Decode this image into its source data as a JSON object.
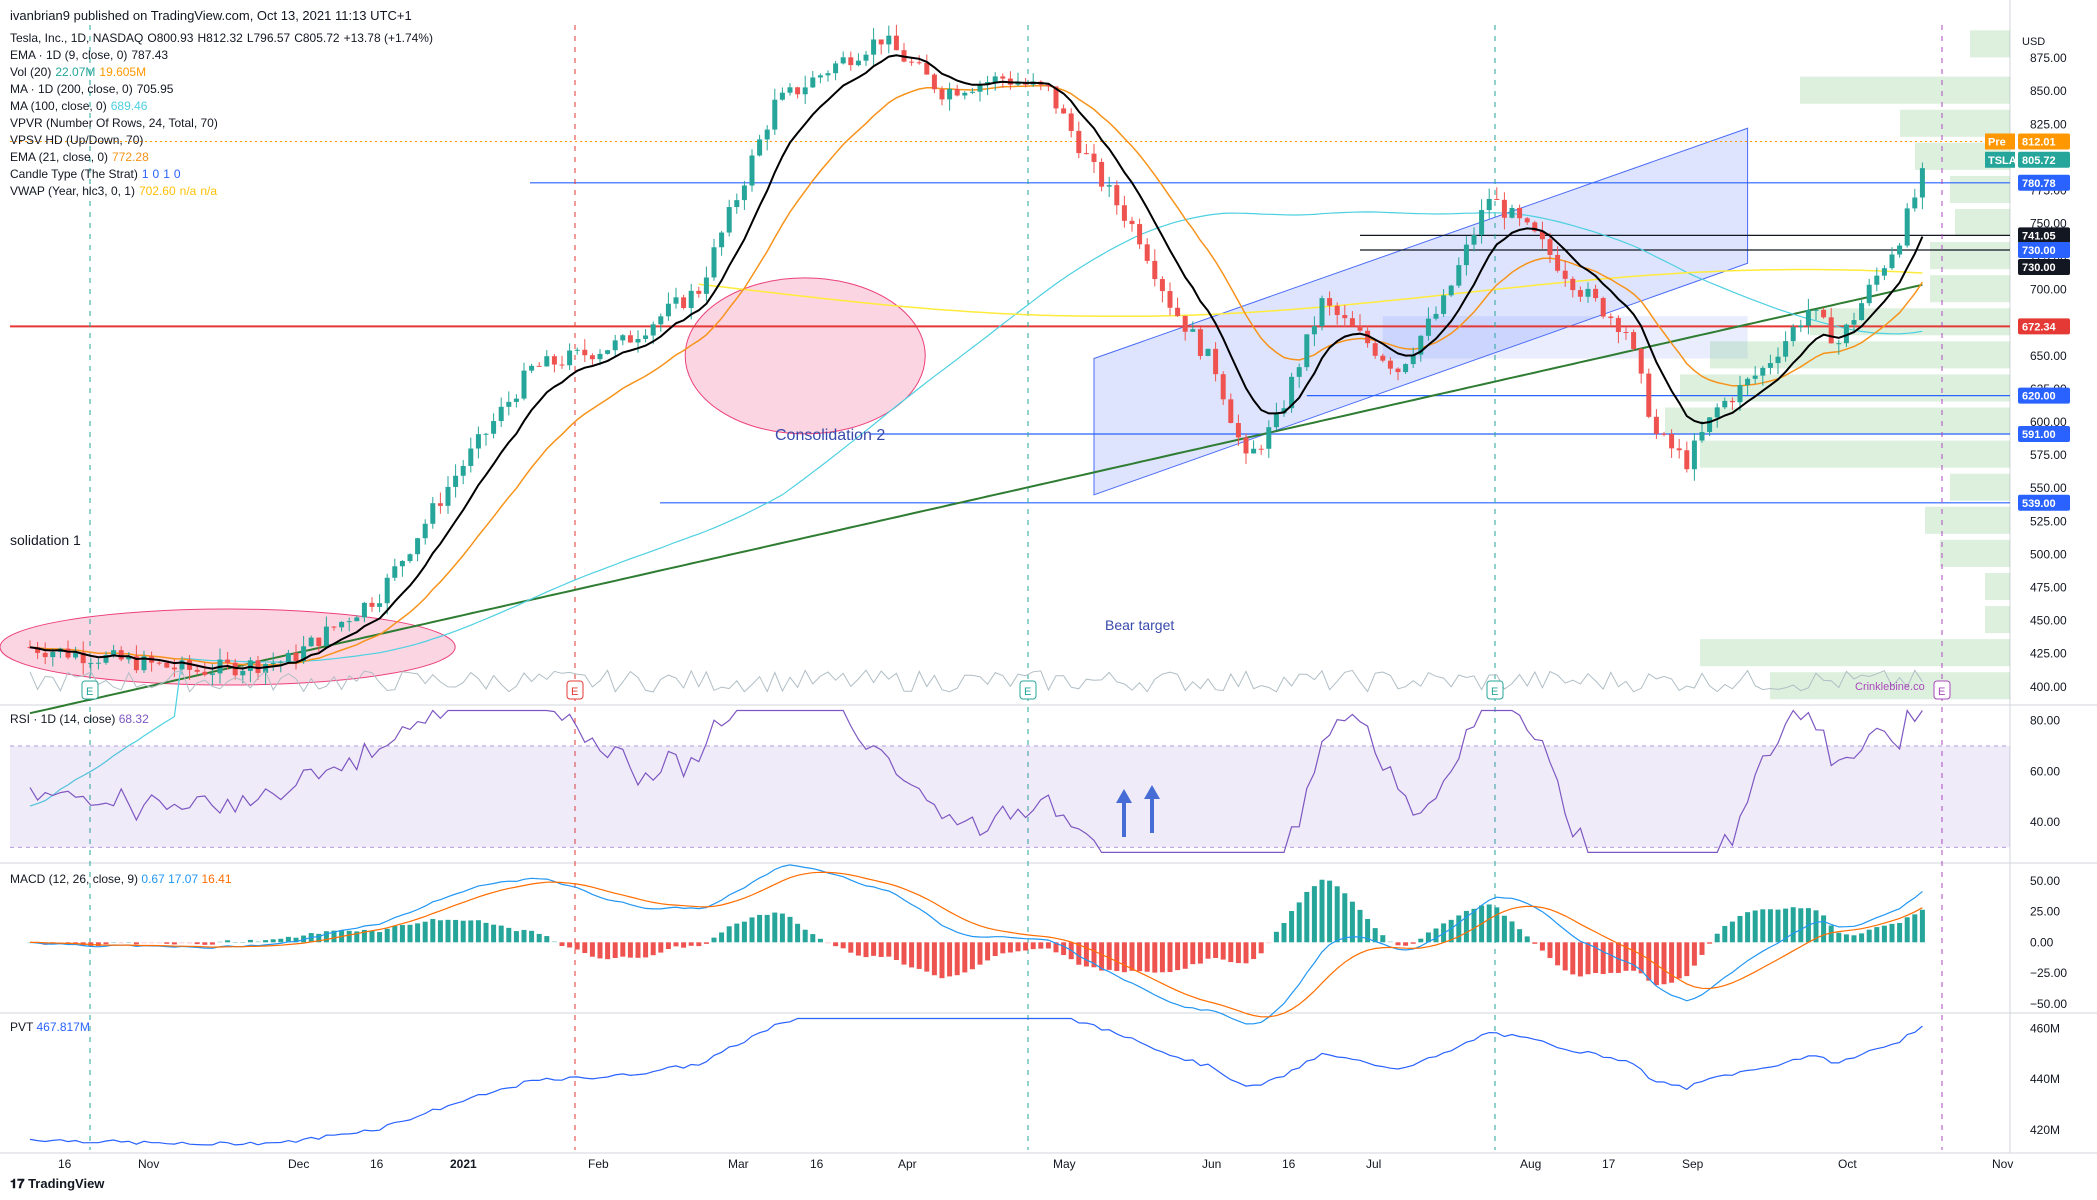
{
  "header": {
    "publisher": "ivanbrian9 published on TradingView.com, Oct 13, 2021 11:13 UTC+1"
  },
  "legend": [
    {
      "label": "Tesla, Inc., 1D, NASDAQ",
      "values": [
        "O800.93",
        "H812.32",
        "L796.57",
        "C805.72",
        "+13.78 (+1.74%)"
      ]
    },
    {
      "label": "EMA · 1D (9, close, 0)",
      "values": [
        "787.43"
      ]
    },
    {
      "label": "Vol (20)",
      "values": [
        "22.07M",
        "19.605M"
      ]
    },
    {
      "label": "MA · 1D (200, close, 0)",
      "values": [
        "705.95"
      ]
    },
    {
      "label": "MA (100, close, 0)",
      "values": [
        "689.46"
      ]
    },
    {
      "label": "VPVR (Number Of Rows, 24, Total, 70)",
      "values": []
    },
    {
      "label": "VPSV HD (Up/Down, 70)",
      "values": []
    },
    {
      "label": "EMA (21, close, 0)",
      "values": [
        "772.28"
      ]
    },
    {
      "label": "Candle Type (The Strat)",
      "values": [
        "1",
        "0",
        "1",
        "0"
      ]
    },
    {
      "label": "VWAP (Year, hlc3, 0, 1)",
      "values": [
        "702.60",
        "n/a",
        "n/a"
      ]
    }
  ],
  "colors": {
    "up": "#26a69a",
    "down": "#ef5350",
    "ema9": "#000000",
    "ema21": "#f7931a",
    "ma100": "#4dd0e1",
    "ma200": "#2e7d32",
    "vwap": "#ffeb3b",
    "channel": "#4a6cf7",
    "rsi": "#7e57c2",
    "macd": "#2196f3",
    "signal": "#ff6d00",
    "pvt": "#2962ff",
    "support": "#2962ff",
    "resistance": "#e53935"
  },
  "chart_data": [
    {
      "type": "candlestick",
      "symbol": "TSLA",
      "x_axis": [
        "16",
        "Nov",
        "Dec",
        "16",
        "2021",
        "Feb",
        "Mar",
        "16",
        "Apr",
        "May",
        "Jun",
        "16",
        "Jul",
        "Aug",
        "17",
        "Sep",
        "Oct",
        "Nov"
      ],
      "y_axis": [
        "875.00",
        "850.00",
        "825.00",
        "800.00",
        "775.00",
        "750.00",
        "725.00",
        "700.00",
        "675.00",
        "650.00",
        "625.00",
        "600.00",
        "575.00",
        "550.00",
        "525.00",
        "500.00",
        "475.00",
        "450.00",
        "425.00",
        "400.00"
      ],
      "ylim": [
        390,
        900
      ],
      "price_tags": [
        {
          "label": "USD",
          "value": "",
          "color": "#ffffff",
          "text": "#131722"
        },
        {
          "label": "Pre",
          "value": "812.01",
          "color": "#ff9800"
        },
        {
          "label": "TSLA",
          "value": "805.72",
          "color": "#26a69a"
        },
        {
          "label": "",
          "value": "780.78",
          "color": "#2962ff"
        },
        {
          "label": "",
          "value": "741.05",
          "color": "#131722"
        },
        {
          "label": "",
          "value": "730.00",
          "color": "#2962ff"
        },
        {
          "label": "",
          "value": "730.00",
          "color": "#131722"
        },
        {
          "label": "",
          "value": "672.34",
          "color": "#e53935"
        },
        {
          "label": "",
          "value": "620.00",
          "color": "#2962ff"
        },
        {
          "label": "",
          "value": "591.00",
          "color": "#2962ff"
        },
        {
          "label": "",
          "value": "539.00",
          "color": "#2962ff"
        }
      ],
      "annotations": [
        "solidation 1",
        "Consolidation 2",
        "Bear target",
        "Crinklebine.co"
      ],
      "earnings_markers": [
        "E",
        "E",
        "E",
        "E",
        "E"
      ]
    },
    {
      "type": "line",
      "title": "RSI · 1D (14, close)",
      "last": "68.32",
      "y_axis": [
        "80.00",
        "60.00",
        "40.00"
      ],
      "ylim": [
        25,
        85
      ],
      "band": [
        30,
        70
      ]
    },
    {
      "type": "bar",
      "title": "MACD (12, 26, close, 9)",
      "last": [
        "0.67",
        "17.07",
        "16.41"
      ],
      "y_axis": [
        "50.00",
        "25.00",
        "0.00",
        "−25.00",
        "−50.00"
      ],
      "ylim": [
        -55,
        62
      ]
    },
    {
      "type": "line",
      "title": "PVT",
      "last": "467.817M",
      "y_axis": [
        "460M",
        "440M",
        "420M"
      ],
      "ylim": [
        412,
        465
      ]
    }
  ],
  "footer": {
    "brand": "TradingView"
  }
}
